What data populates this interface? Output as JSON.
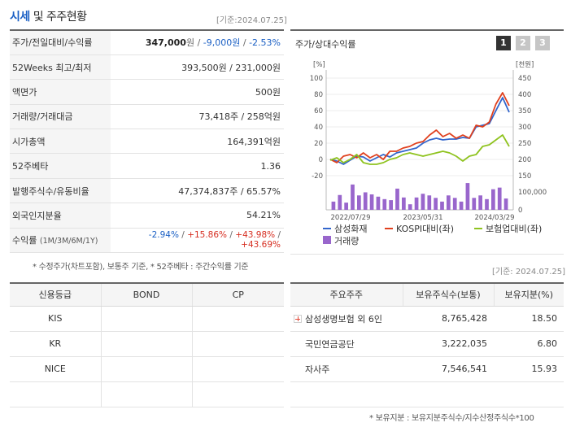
{
  "header": {
    "title_accent": "시세",
    "title_rest": " 및 주주현황",
    "date": "[기준:2024.07.25]"
  },
  "info": {
    "price_label": "주가/전일대비/수익률",
    "price_value": "347,000",
    "price_unit": "원 / ",
    "change_value": "-9,000원",
    "sep": " / ",
    "return_value": "-2.53%",
    "week52_label": "52Weeks 최고/최저",
    "week52_value": "393,500원 / 231,000원",
    "par_label": "액면가",
    "par_value": "500원",
    "volume_label": "거래량/거래대금",
    "volume_value": "73,418주 / 258억원",
    "mcap_label": "시가총액",
    "mcap_value": "164,391억원",
    "beta_label": "52주베타",
    "beta_value": "1.36",
    "shares_label": "발행주식수/유동비율",
    "shares_value": "47,374,837주 / 65.57%",
    "foreign_label": "외국인지분율",
    "foreign_value": "54.21%",
    "ret_label": "수익률",
    "ret_periods": "(1M/3M/6M/1Y)",
    "ret_1m": "-2.94%",
    "ret_3m": "+15.86%",
    "ret_6m": "+43.98%",
    "ret_1y": "+43.69%",
    "ret_sep": "/ "
  },
  "note1": "* 수정주가(차트포함), 보통주 기준, * 52주베타 : 주간수익률 기준",
  "date2": "[기준: 2024.07.25]",
  "chart_panel": {
    "title": "주가/상대수익률",
    "pager": [
      "1",
      "2",
      "3"
    ],
    "left_unit": "[%]",
    "right_unit": "[천원]"
  },
  "chart_data": {
    "type": "line",
    "x_ticks": [
      "2022/07/29",
      "2023/05/31",
      "2024/03/29"
    ],
    "yleft_ticks": [
      100,
      80,
      60,
      40,
      20,
      0,
      -20
    ],
    "yleft_lim": [
      -20,
      100
    ],
    "yright_ticks": [
      450,
      400,
      350,
      300,
      250,
      200,
      150
    ],
    "yright_lim": [
      150,
      450
    ],
    "volume_ticks": [
      "100,000",
      "0"
    ],
    "volume_max": 150000,
    "series": [
      {
        "name": "삼성화재",
        "color": "#3366cc",
        "values": [
          0,
          -2,
          -6,
          -1,
          4,
          3,
          -2,
          2,
          6,
          3,
          8,
          10,
          12,
          14,
          20,
          24,
          26,
          24,
          25,
          25,
          27,
          26,
          40,
          42,
          44,
          60,
          76,
          58
        ]
      },
      {
        "name": "KOSPI대비(좌)",
        "color": "#e0401e",
        "values": [
          0,
          -4,
          4,
          6,
          2,
          8,
          2,
          6,
          0,
          10,
          10,
          14,
          16,
          20,
          22,
          30,
          36,
          28,
          32,
          26,
          30,
          26,
          42,
          40,
          46,
          68,
          82,
          66
        ]
      },
      {
        "name": "보험업대비(좌)",
        "color": "#8fc31f",
        "values": [
          -1,
          2,
          -4,
          0,
          6,
          -4,
          -6,
          -6,
          -4,
          0,
          2,
          6,
          8,
          6,
          4,
          6,
          8,
          10,
          8,
          4,
          -2,
          4,
          6,
          16,
          18,
          24,
          30,
          16
        ]
      }
    ],
    "volume": {
      "name": "거래량",
      "color": "#9966cc",
      "values": [
        40000,
        72000,
        35000,
        123000,
        70000,
        85000,
        75000,
        64000,
        52000,
        47000,
        103000,
        60000,
        27000,
        60000,
        78000,
        70000,
        58000,
        40000,
        70000,
        58000,
        40000,
        130000,
        58000,
        70000,
        52000,
        100000,
        108000,
        55000
      ]
    }
  },
  "credit": {
    "headers": [
      "신용등급",
      "BOND",
      "CP"
    ],
    "rows": [
      [
        "KIS",
        "",
        ""
      ],
      [
        "KR",
        "",
        ""
      ],
      [
        "NICE",
        "",
        ""
      ],
      [
        "",
        "",
        ""
      ]
    ]
  },
  "holders": {
    "headers": [
      "주요주주",
      "보유주식수(보통)",
      "보유지분(%)"
    ],
    "rows": [
      [
        "삼성생명보험 외 6인",
        "8,765,428",
        "18.50"
      ],
      [
        "국민연금공단",
        "3,222,035",
        "6.80"
      ],
      [
        "자사주",
        "7,546,541",
        "15.93"
      ],
      [
        "",
        "",
        ""
      ]
    ]
  },
  "note2": "* 보유지분 : 보유지분주식수/지수산정주식수*100"
}
